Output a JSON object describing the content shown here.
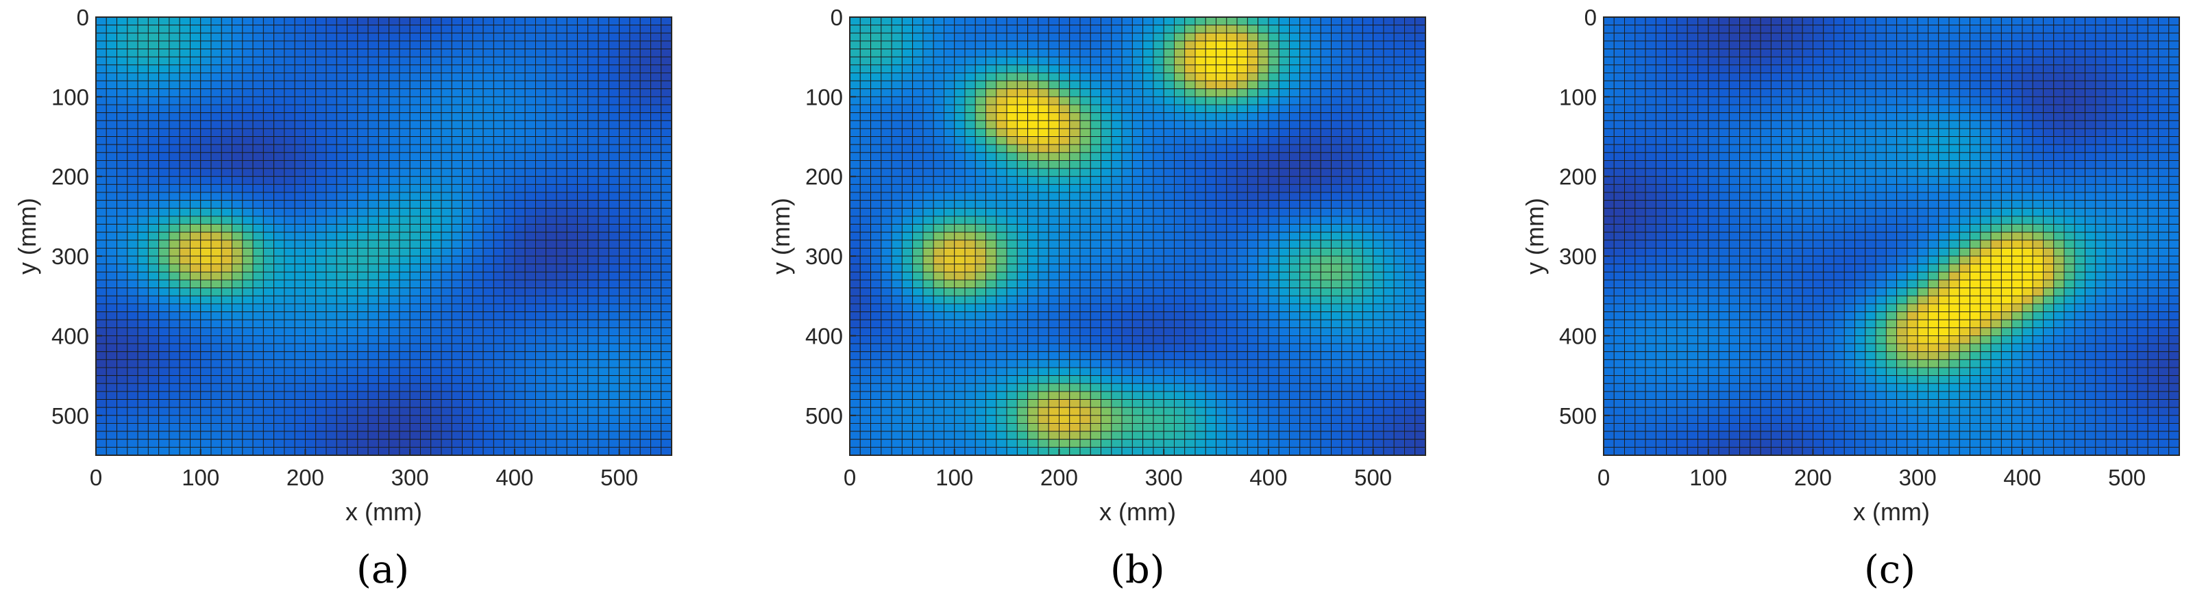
{
  "chart_data": [
    {
      "type": "heatmap",
      "caption": "(a)",
      "xlabel": "x (mm)",
      "ylabel": "y (mm)",
      "xlim": [
        0,
        550
      ],
      "ylim": [
        0,
        550
      ],
      "y_reversed": true,
      "xticks": [
        "0",
        "100",
        "200",
        "300",
        "400",
        "500"
      ],
      "yticks": [
        "0",
        "100",
        "200",
        "300",
        "400",
        "500"
      ],
      "colormap": "parula",
      "grid": true,
      "hotspots": [
        {
          "x": 105,
          "y": 295,
          "intensity": 0.95,
          "label": "peak"
        },
        {
          "x": 50,
          "y": 30,
          "intensity": 0.42
        },
        {
          "x": 320,
          "y": 260,
          "intensity": 0.45
        },
        {
          "x": 250,
          "y": 300,
          "intensity": 0.42
        }
      ]
    },
    {
      "type": "heatmap",
      "caption": "(b)",
      "xlabel": "x (mm)",
      "ylabel": "y (mm)",
      "xlim": [
        0,
        550
      ],
      "ylim": [
        0,
        550
      ],
      "y_reversed": true,
      "xticks": [
        "0",
        "100",
        "200",
        "300",
        "400",
        "500"
      ],
      "yticks": [
        "0",
        "100",
        "200",
        "300",
        "400",
        "500"
      ],
      "colormap": "parula",
      "grid": true,
      "hotspots": [
        {
          "x": 155,
          "y": 110,
          "intensity": 0.92,
          "label": "peak"
        },
        {
          "x": 355,
          "y": 55,
          "intensity": 0.95,
          "label": "peak"
        },
        {
          "x": 100,
          "y": 305,
          "intensity": 0.93,
          "label": "peak"
        },
        {
          "x": 205,
          "y": 500,
          "intensity": 0.9,
          "label": "peak"
        },
        {
          "x": 200,
          "y": 150,
          "intensity": 0.7
        },
        {
          "x": 455,
          "y": 310,
          "intensity": 0.62
        },
        {
          "x": 305,
          "y": 500,
          "intensity": 0.6
        },
        {
          "x": 20,
          "y": 40,
          "intensity": 0.55
        }
      ]
    },
    {
      "type": "heatmap",
      "caption": "(c)",
      "xlabel": "x (mm)",
      "ylabel": "y (mm)",
      "xlim": [
        0,
        550
      ],
      "ylim": [
        0,
        550
      ],
      "y_reversed": true,
      "xticks": [
        "0",
        "100",
        "200",
        "300",
        "400",
        "500"
      ],
      "yticks": [
        "0",
        "100",
        "200",
        "300",
        "400",
        "500"
      ],
      "colormap": "parula",
      "grid": true,
      "hotspots": [
        {
          "x": 395,
          "y": 310,
          "intensity": 0.93,
          "label": "peak"
        },
        {
          "x": 300,
          "y": 400,
          "intensity": 0.85,
          "label": "peak"
        },
        {
          "x": 350,
          "y": 355,
          "intensity": 0.75
        },
        {
          "x": 340,
          "y": 160,
          "intensity": 0.45
        }
      ]
    }
  ]
}
